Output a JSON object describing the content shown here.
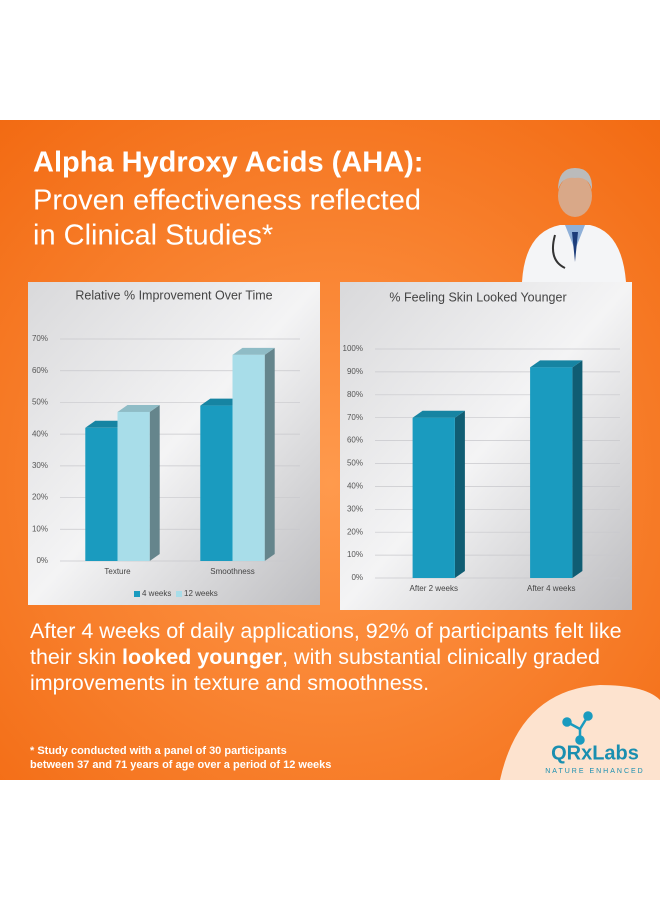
{
  "header": {
    "title": [
      "Alpha Hydroxy Acids (AHA):",
      "Proven effectiveness reflected",
      "in Clinical Studies*"
    ]
  },
  "chart_data": [
    {
      "type": "bar",
      "title": "Relative % Improvement Over Time",
      "categories": [
        "Texture",
        "Smoothness"
      ],
      "series": [
        {
          "name": "4 weeks",
          "color": "#1a9bbf",
          "values": [
            42,
            49
          ]
        },
        {
          "name": "12 weeks",
          "color": "#a8dde9",
          "values": [
            47,
            65
          ]
        }
      ],
      "ylim": [
        0,
        70
      ],
      "yticks": [
        {
          "value": 0,
          "label": "0%"
        },
        {
          "value": 10,
          "label": "10%"
        },
        {
          "value": 20,
          "label": "20%"
        },
        {
          "value": 30,
          "label": "30%"
        },
        {
          "value": 40,
          "label": "40%"
        },
        {
          "value": 50,
          "label": "50%"
        },
        {
          "value": 60,
          "label": "60%"
        },
        {
          "value": 70,
          "label": "70%"
        }
      ],
      "grid": true,
      "legend": "bottom"
    },
    {
      "type": "bar",
      "title": "% Feeling Skin Looked Younger",
      "categories": [
        "After 2 weeks",
        "After 4 weeks"
      ],
      "values": [
        70,
        92
      ],
      "color": "#1a9bbf",
      "ylim": [
        0,
        100
      ],
      "yticks": [
        {
          "value": 0,
          "label": "0%"
        },
        {
          "value": 10,
          "label": "10%"
        },
        {
          "value": 20,
          "label": "20%"
        },
        {
          "value": 30,
          "label": "30%"
        },
        {
          "value": 40,
          "label": "40%"
        },
        {
          "value": 50,
          "label": "50%"
        },
        {
          "value": 60,
          "label": "60%"
        },
        {
          "value": 70,
          "label": "70%"
        },
        {
          "value": 80,
          "label": "80%"
        },
        {
          "value": 90,
          "label": "90%"
        },
        {
          "value": 100,
          "label": "100%"
        }
      ],
      "grid": true
    }
  ],
  "body": [
    "After 4 weeks of daily applications, 92% of participants felt like their skin ",
    "looked younger",
    ", with substantial clinically graded improvements in texture and smoothness."
  ],
  "footnote": [
    "* Study conducted with a panel of 30 participants",
    "between 37 and 71 years of age over a period of 12 weeks"
  ],
  "logo": {
    "name": "QRxLabs",
    "tagline": "NATURE ENHANCED"
  }
}
